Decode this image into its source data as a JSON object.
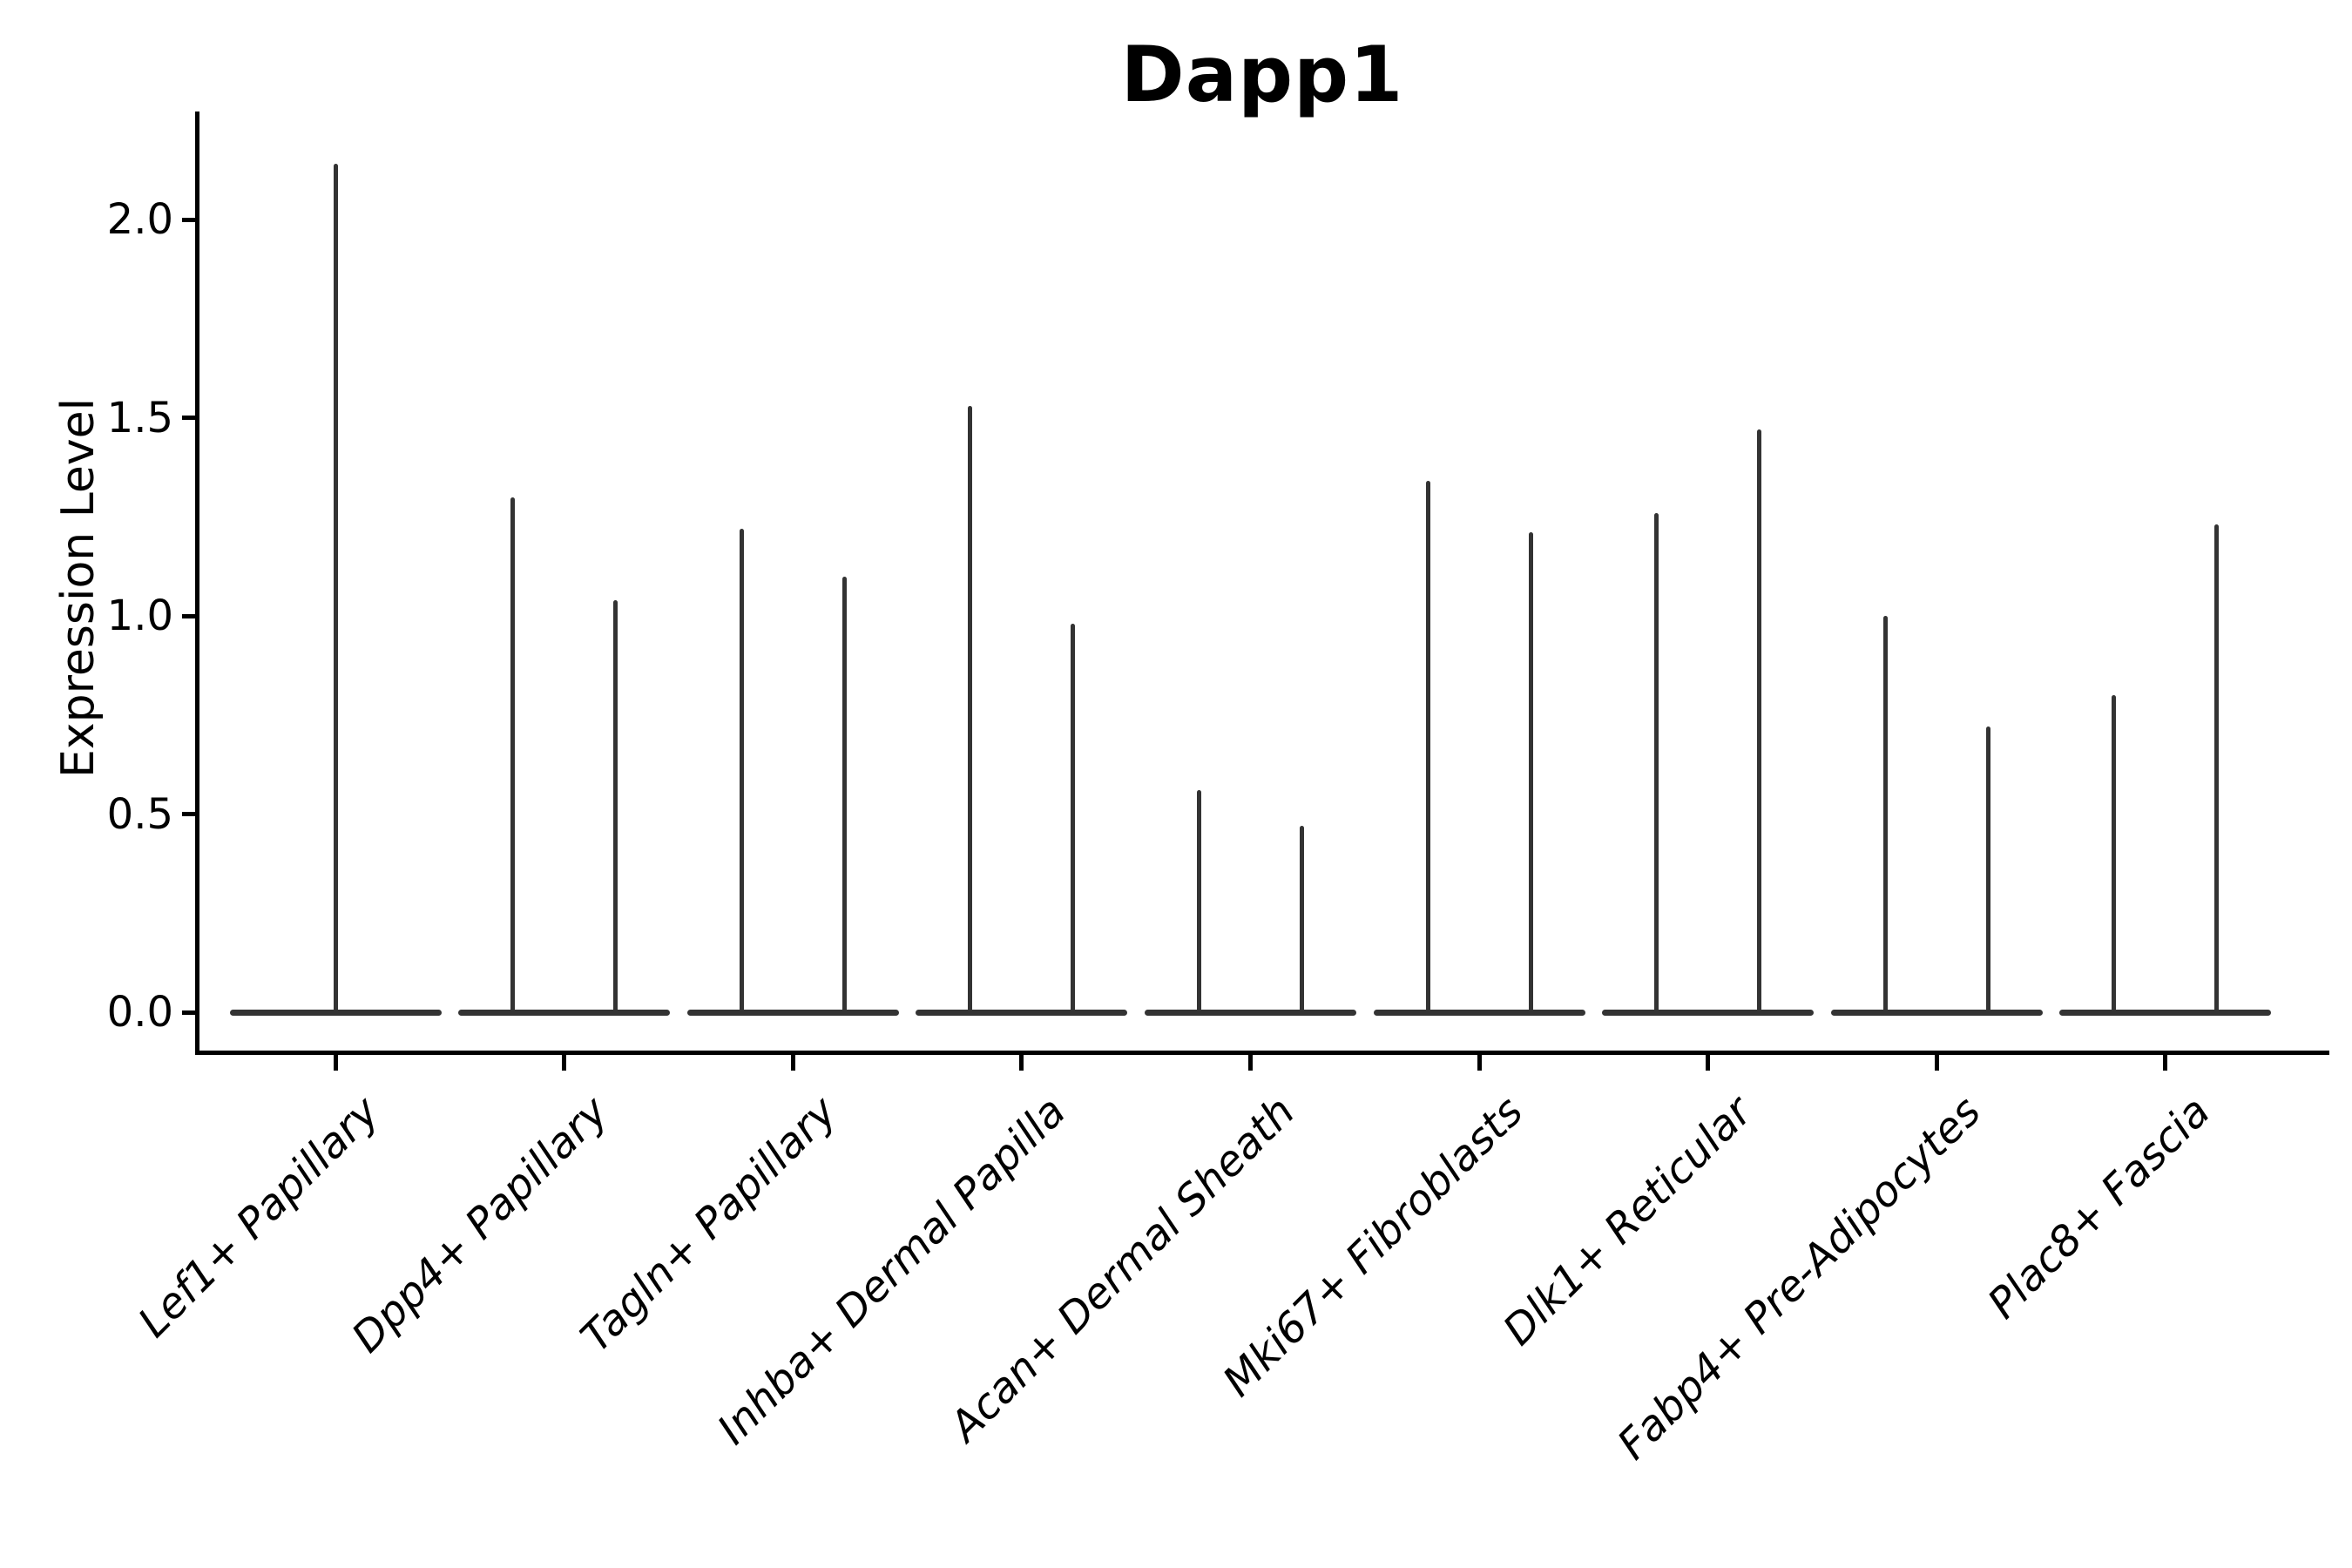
{
  "title": "Dapp1",
  "axes": {
    "ylabel": "Expression Level",
    "y_tick_labels": [
      "0.0",
      "0.5",
      "1.0",
      "1.5",
      "2.0"
    ],
    "y_tick_values": [
      0.0,
      0.5,
      1.0,
      1.5,
      2.0
    ]
  },
  "chart_data": {
    "type": "violin",
    "title": "Dapp1",
    "xlabel": "",
    "ylabel": "Expression Level",
    "ylim": [
      -0.1,
      2.27
    ],
    "grid": false,
    "legend": "none",
    "orientation": "vertical",
    "description": "Single-cell gene expression violin plot for gene Dapp1. Each category shows narrow spike-shaped violins: the bulk of cells sit at expression 0 (wide flat base) with a thin tail reaching the maximum expression value. The first category shows one centered violin; all other categories show two side-by-side violins.",
    "categories": [
      "Lef1+ Papillary",
      "Dpp4+ Papillary",
      "Tagln+ Papillary",
      "Inhba+ Dermal Papilla",
      "Acan+ Dermal Sheath",
      "Mki67+ Fibroblasts",
      "Dlk1+ Reticular",
      "Fabp4+ Pre-Adipocytes",
      "Plac8+ Fascia"
    ],
    "violins_per_category": [
      1,
      2,
      2,
      2,
      2,
      2,
      2,
      2,
      2
    ],
    "series": [
      {
        "name": "left-violin-max-expression",
        "values": [
          2.14,
          1.3,
          1.22,
          1.53,
          0.56,
          1.34,
          1.26,
          1.0,
          0.8
        ]
      },
      {
        "name": "right-violin-max-expression",
        "values": [
          null,
          1.04,
          1.1,
          0.98,
          0.47,
          1.21,
          1.47,
          0.72,
          1.23
        ]
      }
    ],
    "baseline_value": 0.0
  }
}
